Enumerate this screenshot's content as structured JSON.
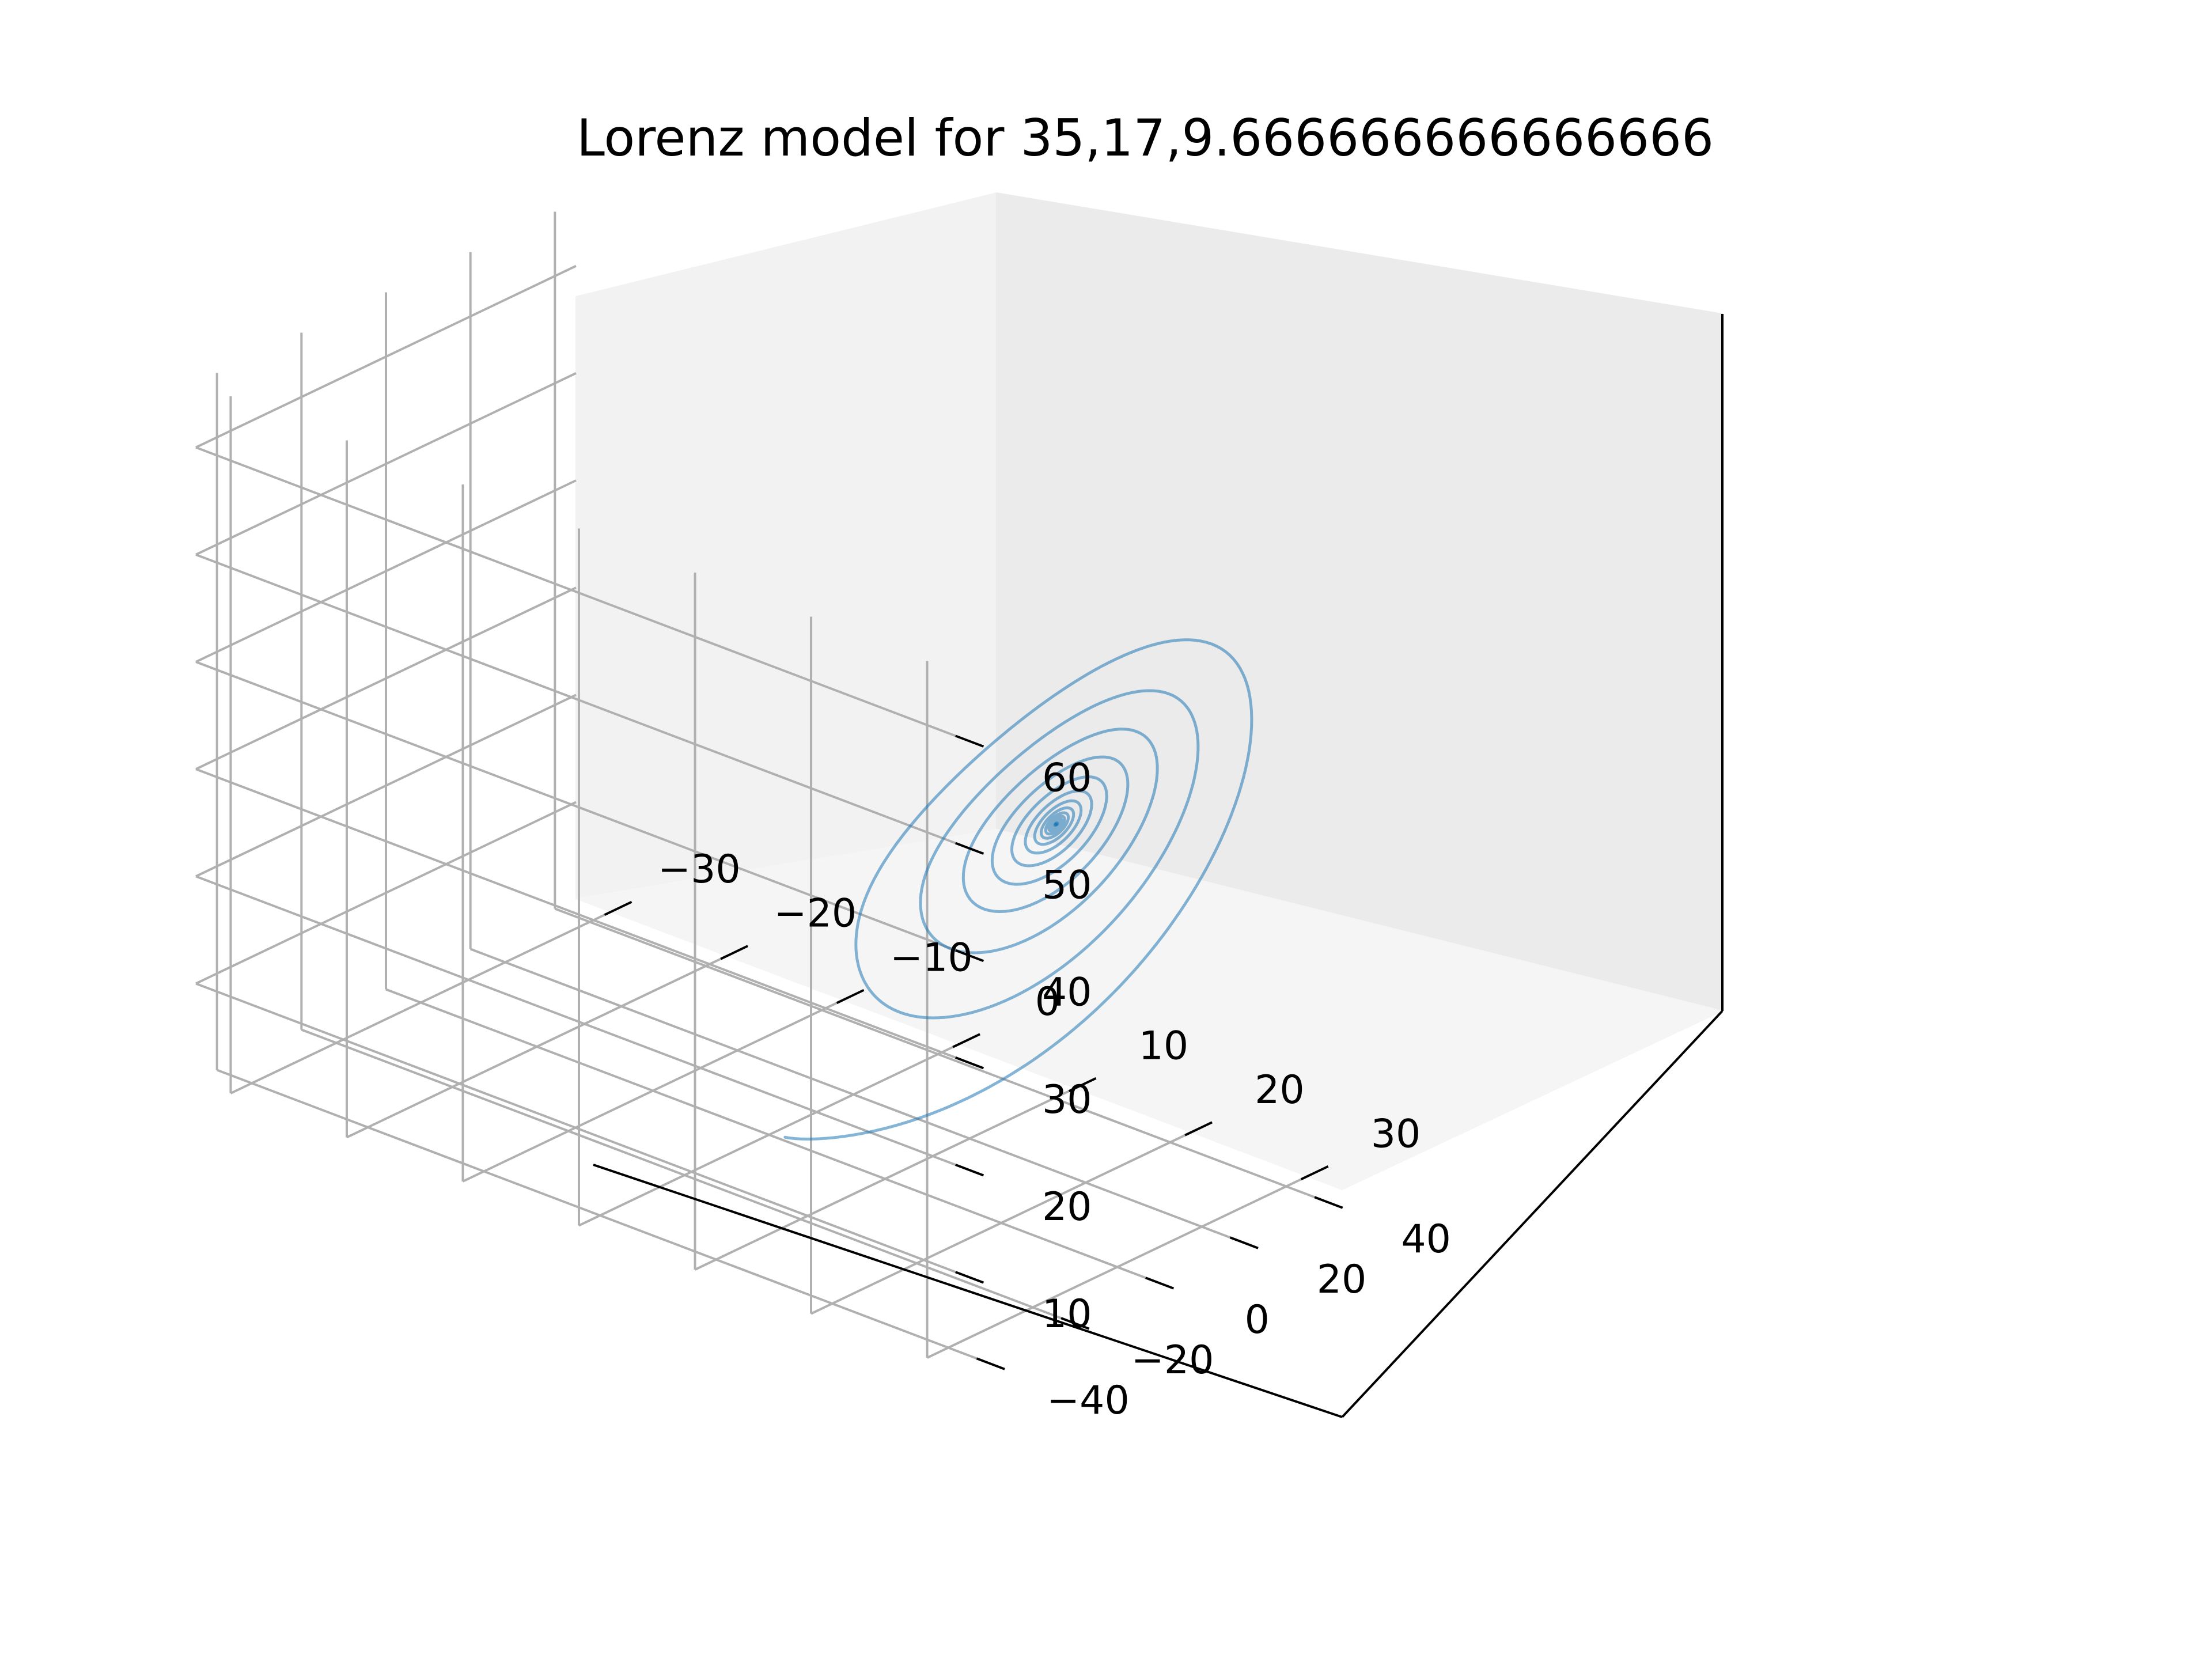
{
  "chart_data": {
    "type": "line",
    "projection": "3d",
    "title": "Lorenz model for 35,17,9.666666666666666",
    "xlabel": "",
    "ylabel": "",
    "zlabel": "",
    "xlim": [
      -33,
      33
    ],
    "ylim": [
      -45,
      45
    ],
    "zlim": [
      1,
      66
    ],
    "x_ticks": [
      -30,
      -20,
      -10,
      0,
      10,
      20,
      30
    ],
    "y_ticks": [
      -40,
      -20,
      0,
      20,
      40
    ],
    "z_ticks": [
      10,
      20,
      30,
      40,
      50,
      60
    ],
    "x_tick_labels": [
      "−30",
      "−20",
      "−10",
      "0",
      "10",
      "20",
      "30"
    ],
    "y_tick_labels": [
      "−40",
      "−20",
      "0",
      "20",
      "40"
    ],
    "z_tick_labels": [
      "10",
      "20",
      "30",
      "40",
      "50",
      "60"
    ],
    "grid": true,
    "series": [
      {
        "color": "#1f77b4",
        "system": "lorenz",
        "sigma": 17,
        "rho": 35,
        "beta": 9.666666666666666,
        "initial_state": [
          1.0,
          1.0,
          1.0
        ]
      }
    ]
  }
}
